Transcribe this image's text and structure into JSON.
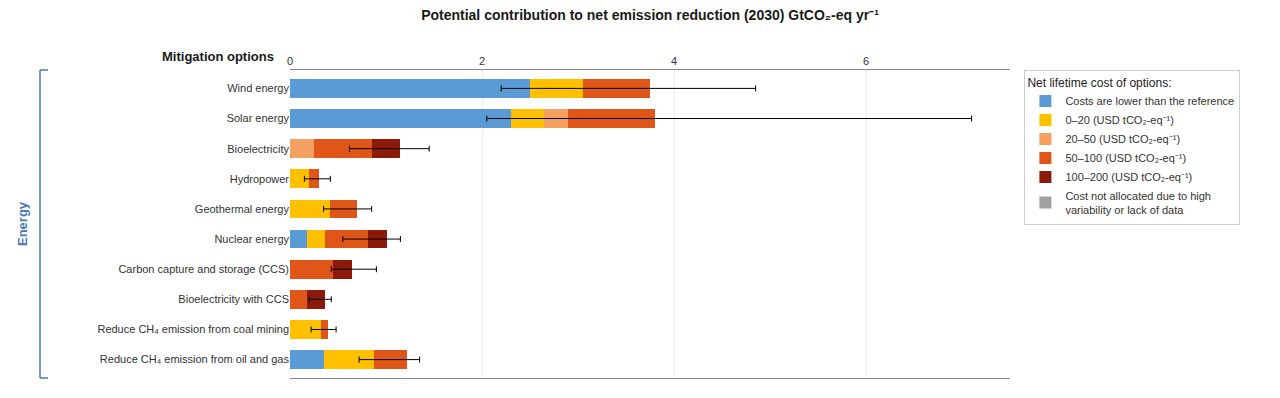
{
  "chart_data": {
    "type": "bar",
    "orientation": "horizontal",
    "stacked": true,
    "title": "Potential contribution to net emission reduction (2030) GtCO₂-eq yr⁻¹",
    "ylabel": "Mitigation options",
    "categories": [
      "Wind energy",
      "Solar energy",
      "Bioelectricity",
      "Hydropower",
      "Geothermal energy",
      "Nuclear energy",
      "Carbon capture and storage (CCS)",
      "Bioelectricity with CCS",
      "Reduce CH₄ emission from coal mining",
      "Reduce CH₄ emission from oil and gas"
    ],
    "legend_title": "Net lifetime cost of options:",
    "series": [
      {
        "name": "Costs are lower than the reference",
        "color": "#5B9BD5",
        "values": [
          2.5,
          2.3,
          null,
          null,
          null,
          0.18,
          null,
          null,
          null,
          0.35
        ]
      },
      {
        "name": "0–20 (USD tCO₂-eq⁻¹)",
        "color": "#FFC000",
        "values": [
          0.55,
          0.35,
          null,
          0.2,
          0.42,
          0.18,
          null,
          null,
          0.32,
          0.52
        ]
      },
      {
        "name": "20–50 (USD tCO₂-eq⁻¹)",
        "color": "#F4A060",
        "values": [
          null,
          0.25,
          0.25,
          null,
          null,
          null,
          null,
          null,
          null,
          null
        ]
      },
      {
        "name": "50–100 (USD tCO₂-eq⁻¹)",
        "color": "#E05518",
        "values": [
          0.7,
          0.9,
          0.6,
          0.1,
          0.28,
          0.45,
          0.45,
          0.18,
          0.08,
          0.35
        ]
      },
      {
        "name": "100–200 (USD tCO₂-eq⁻¹)",
        "color": "#8B1A0A",
        "values": [
          null,
          null,
          0.3,
          null,
          null,
          0.2,
          0.2,
          0.18,
          null,
          null
        ]
      },
      {
        "name": "Cost not allocated due to high\nvariability or lack of data",
        "color": "#A0A0A0",
        "values": [
          null,
          null,
          null,
          null,
          null,
          null,
          null,
          null,
          null,
          null
        ]
      }
    ],
    "errors": [
      {
        "x": 2.5,
        "low": 2.2,
        "high": 4.85
      },
      {
        "x": 2.3,
        "low": 2.05,
        "high": 7.1
      },
      {
        "x": 0.75,
        "low": 0.62,
        "high": 1.45
      },
      {
        "x": 0.2,
        "low": 0.15,
        "high": 0.42
      },
      {
        "x": 0.45,
        "low": 0.35,
        "high": 0.85
      },
      {
        "x": 0.7,
        "low": 0.55,
        "high": 1.15
      },
      {
        "x": 0.55,
        "low": 0.43,
        "high": 0.9
      },
      {
        "x": 0.25,
        "low": 0.2,
        "high": 0.43
      },
      {
        "x": 0.28,
        "low": 0.22,
        "high": 0.48
      },
      {
        "x": 0.88,
        "low": 0.72,
        "high": 1.35
      }
    ],
    "annotations": [
      {
        "text": "Energy",
        "color": "#4B7BB5"
      }
    ],
    "xlim": [
      0,
      7.5
    ],
    "xticks": [
      0,
      2,
      4,
      6
    ],
    "grid": true,
    "legend": "right"
  }
}
